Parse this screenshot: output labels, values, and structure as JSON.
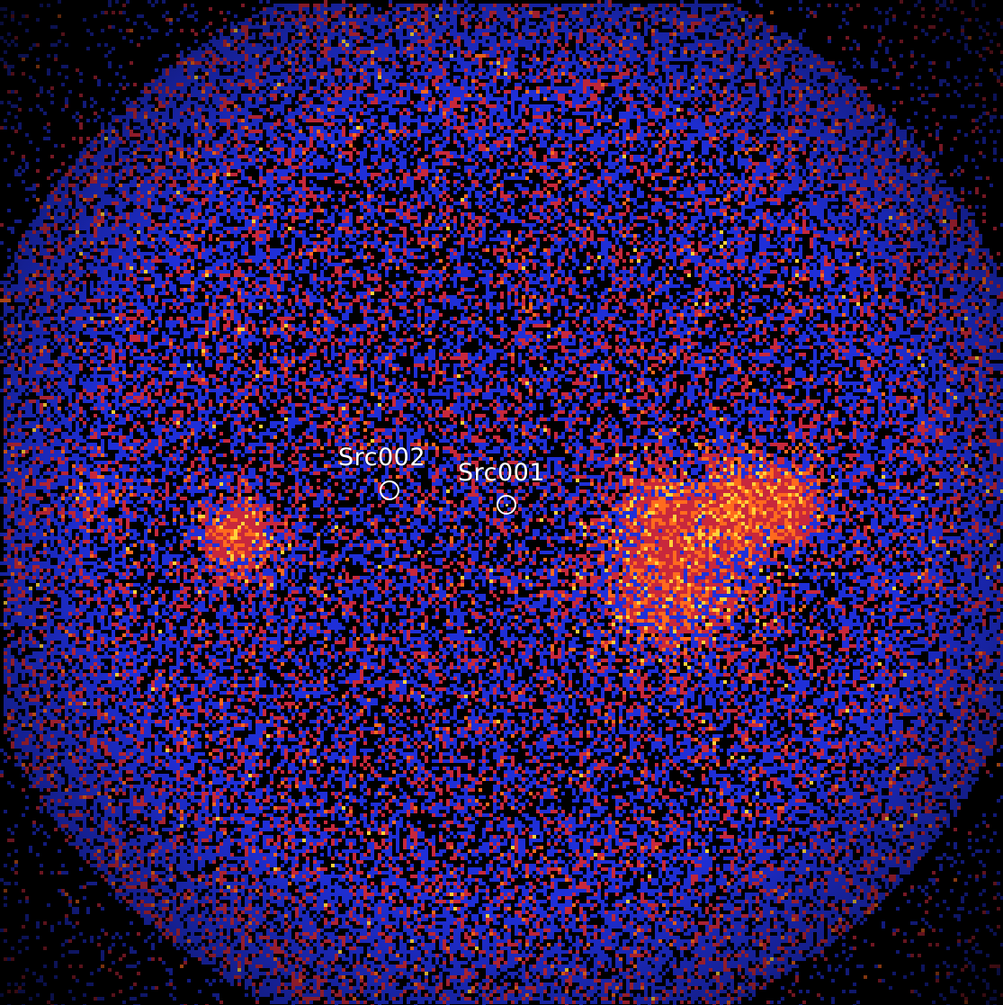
{
  "image": {
    "kind": "x-ray-counts-map",
    "palette": {
      "background": "#000000",
      "low": "#1f2fd8",
      "mid": "#c8283c",
      "high": "#ff6a1e",
      "peak": "#ffd23a"
    }
  },
  "sources": [
    {
      "id": "src002",
      "label": "Src002"
    },
    {
      "id": "src001",
      "label": "Src001"
    }
  ]
}
